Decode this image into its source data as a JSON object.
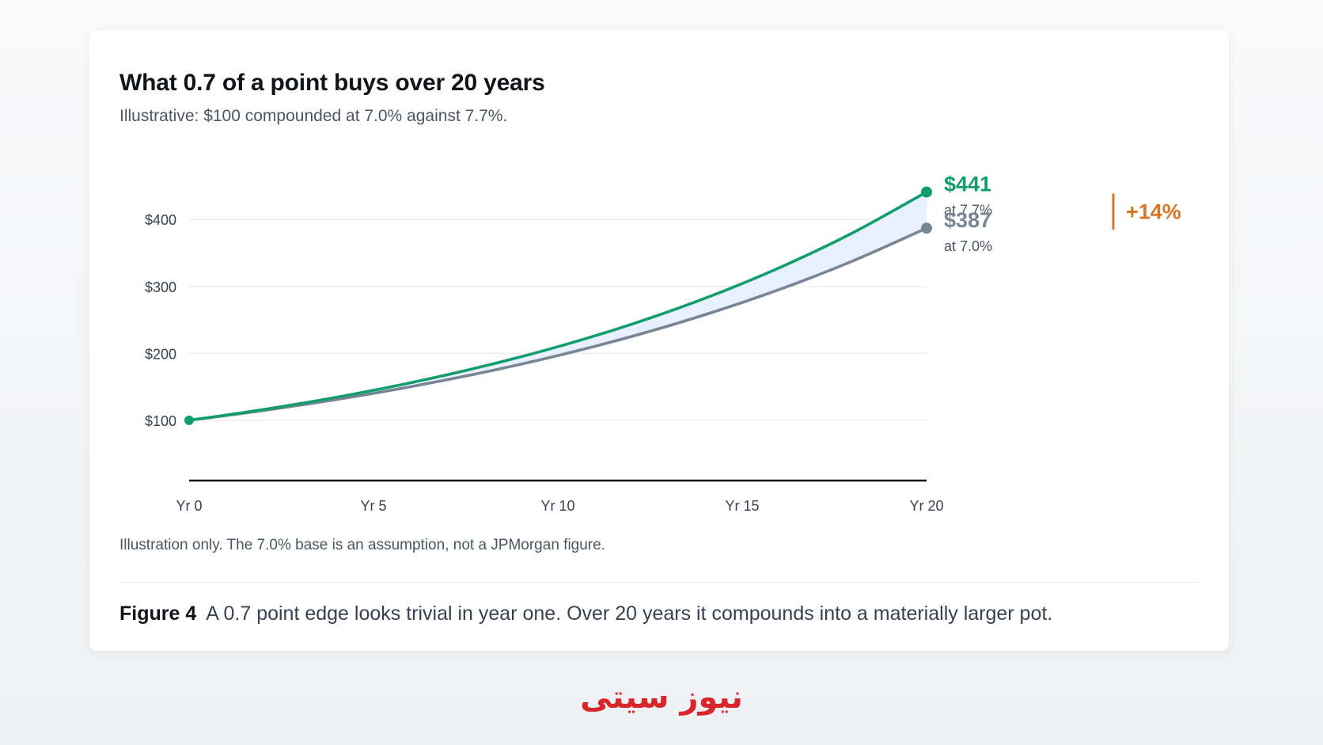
{
  "figure": {
    "title": "What 0.7 of a point buys over 20 years",
    "subtitle": "Illustrative: $100 compounded at 7.0% against 7.7%.",
    "note": "Illustration only. The 7.0% base is an assumption, not a JPMorgan figure.",
    "caption_label": "Figure 4",
    "caption_text": "A 0.7 point edge looks trivial in year one. Over 20 years it compounds into a materially larger pot."
  },
  "chart_data": {
    "type": "line",
    "x": [
      0,
      2,
      4,
      6,
      8,
      10,
      12,
      14,
      16,
      18,
      20
    ],
    "x_ticks": [
      0,
      5,
      10,
      15,
      20
    ],
    "x_tick_labels": [
      "Yr 0",
      "Yr 5",
      "Yr 10",
      "Yr 15",
      "Yr 20"
    ],
    "y_ticks": [
      100,
      200,
      300,
      400
    ],
    "y_tick_labels": [
      "$100",
      "$200",
      "$300",
      "$400"
    ],
    "ylim": [
      10,
      470
    ],
    "xlim": [
      0,
      20
    ],
    "grid": true,
    "shade_between_series": true,
    "series": [
      {
        "rate": 7.7,
        "color": "#119e6c",
        "values": [
          100,
          116.0,
          134.5,
          156.0,
          181.0,
          209.9,
          243.5,
          282.5,
          327.7,
          380.1,
          441
        ],
        "end_label": "$441",
        "end_sublabel": "at 7.7%"
      },
      {
        "rate": 7.0,
        "color": "#778594",
        "values": [
          100,
          114.5,
          131.1,
          150.1,
          171.8,
          196.7,
          225.2,
          257.9,
          295.2,
          338.0,
          387
        ],
        "end_label": "$387",
        "end_sublabel": "at 7.0%"
      }
    ],
    "difference_label": "+14%",
    "difference_color": "#d97425",
    "shade_color": "#e8efff",
    "baseline_color": "#111418"
  },
  "watermark": {
    "text": "نیوز سیتی"
  }
}
